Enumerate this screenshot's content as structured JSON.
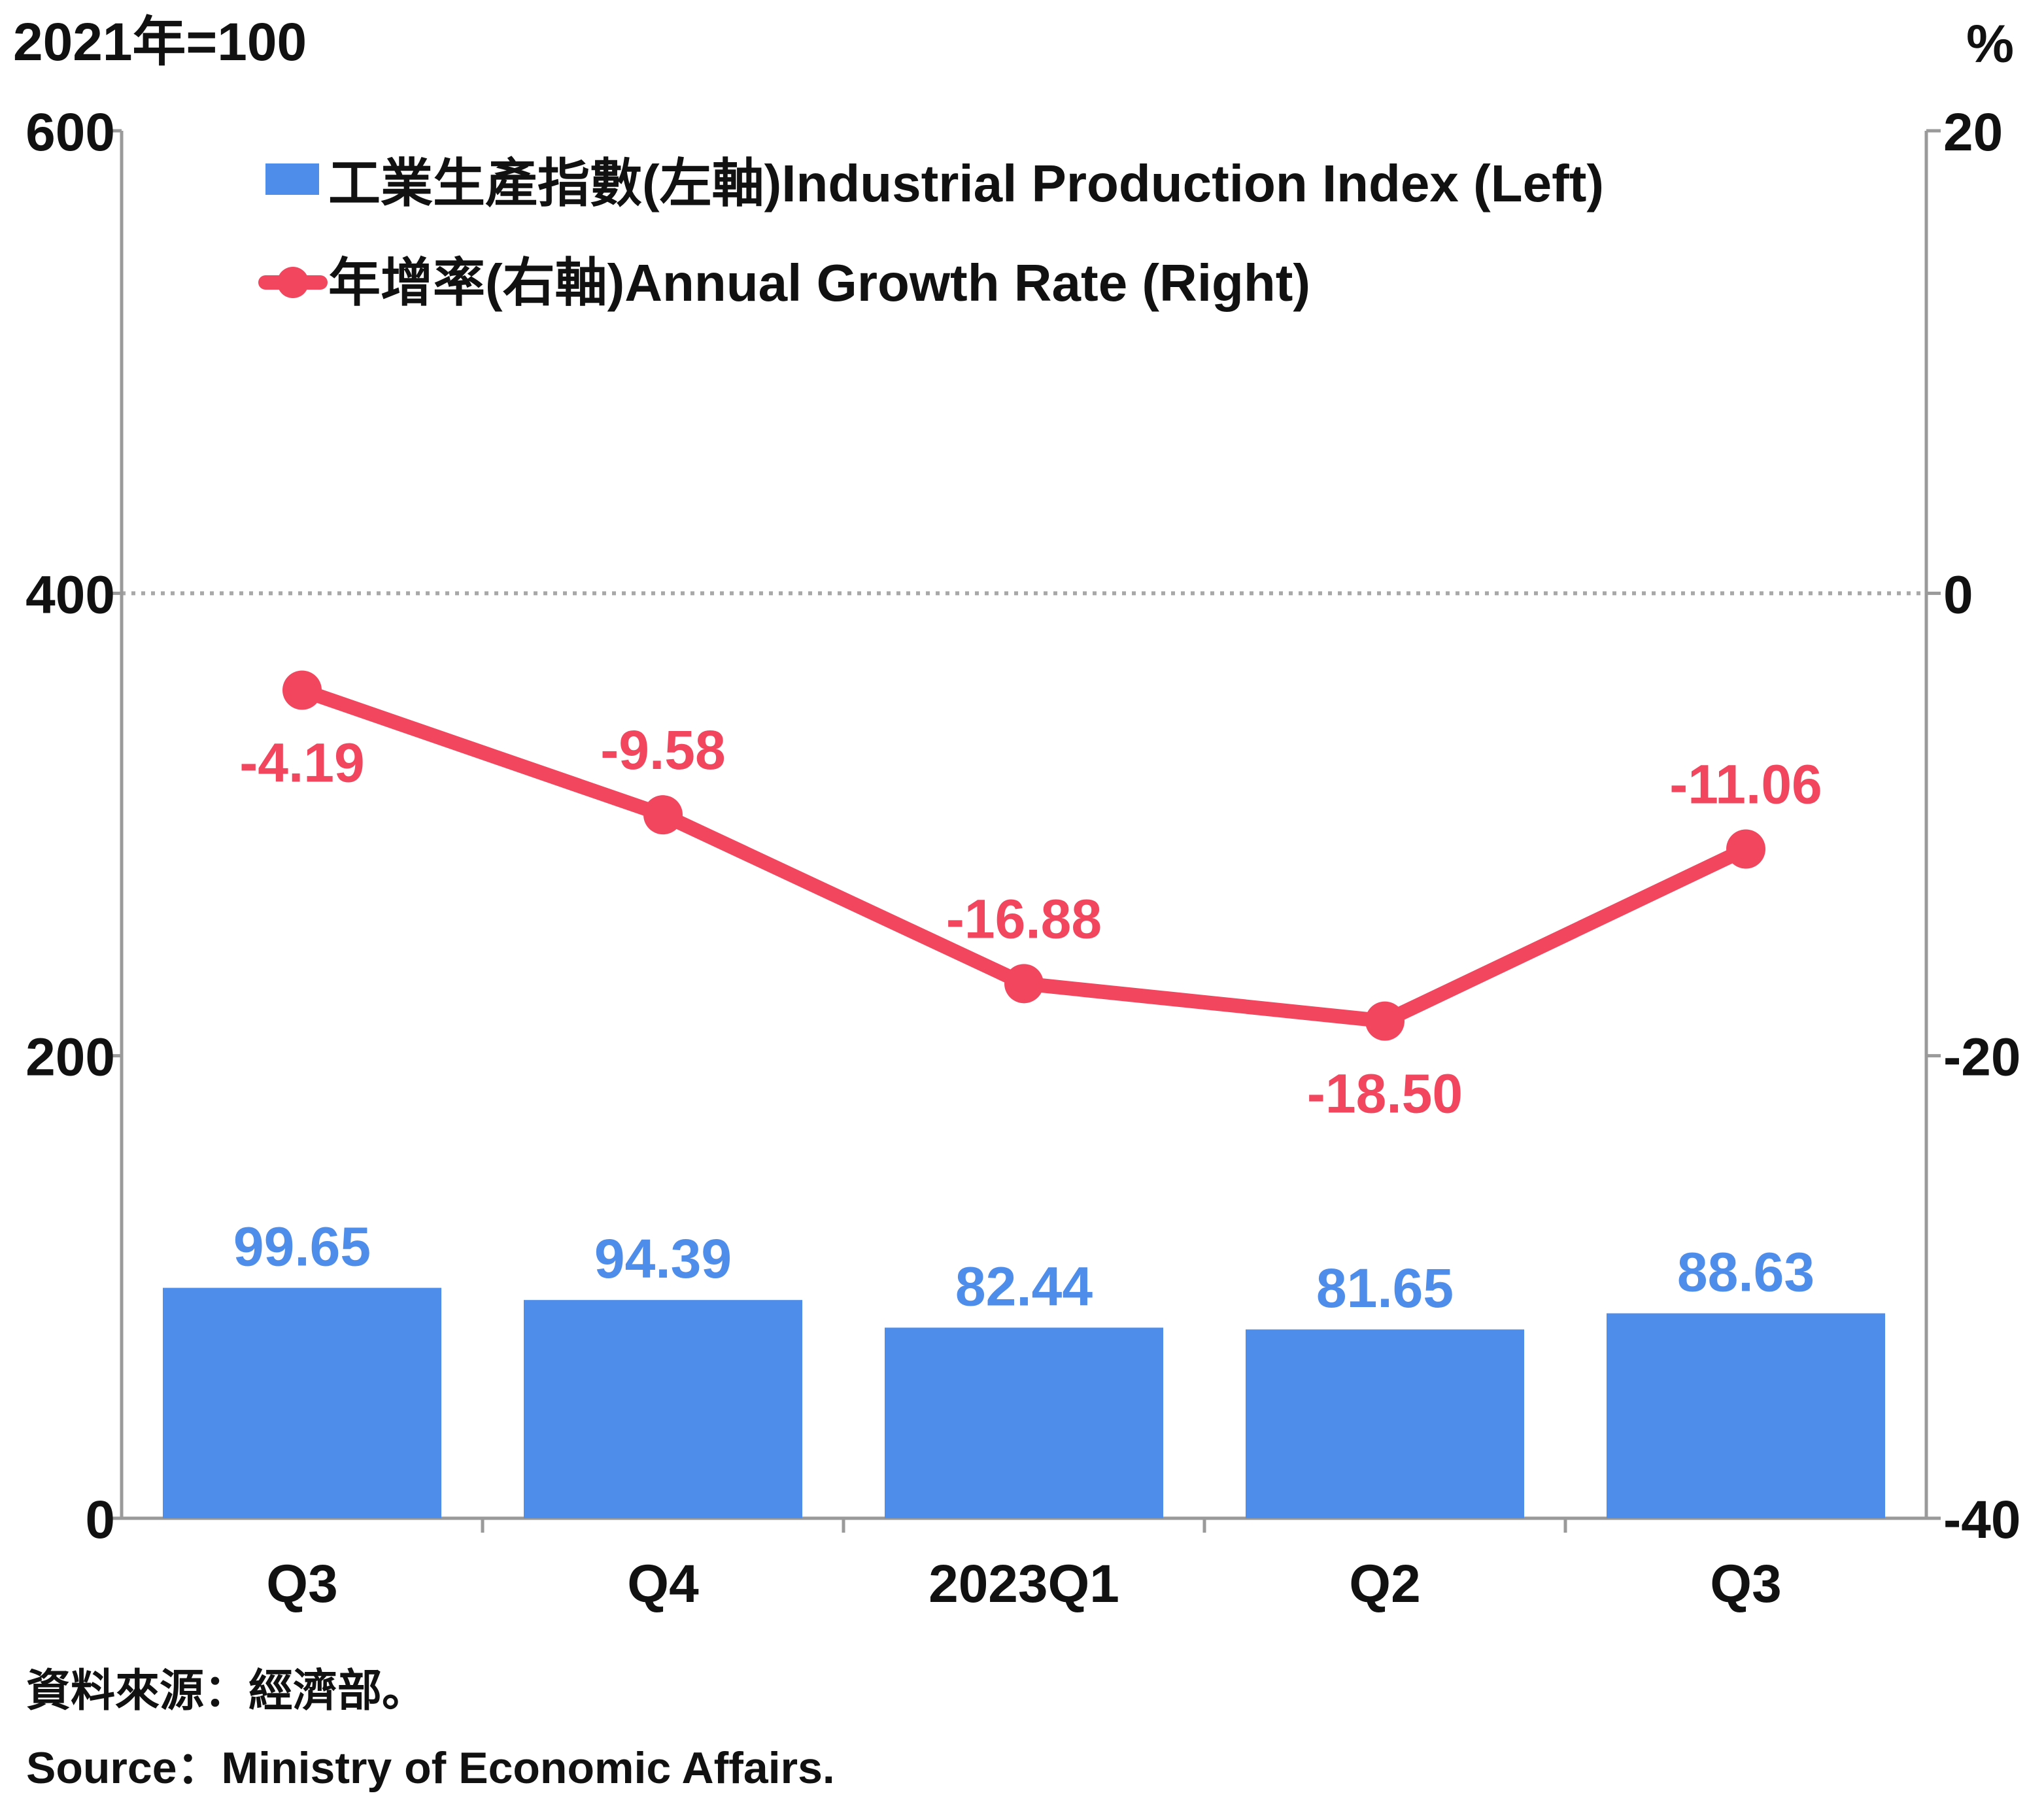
{
  "header": {
    "left_unit": "2021年=100",
    "right_unit": "%"
  },
  "legend": {
    "bar_label": "工業生產指數(左軸)Industrial Production Index (Left)",
    "line_label": "年增率(右軸)Annual Growth Rate (Right)"
  },
  "source": {
    "zh": "資料來源：經濟部。",
    "en": "Source：Ministry of Economic Affairs."
  },
  "colors": {
    "bar": "#4f8dea",
    "line": "#f2465f",
    "axis": "#9a9a9a",
    "text": "#111111"
  },
  "chart_data": {
    "type": "bar",
    "categories": [
      "Q3",
      "Q4",
      "2023Q1",
      "Q2",
      "Q3"
    ],
    "left_axis": {
      "ylim": [
        0,
        600
      ],
      "ticks": [
        "0",
        "200",
        "400",
        "600"
      ]
    },
    "right_axis": {
      "ylim": [
        -40,
        20
      ],
      "ticks": [
        "-40",
        "-20",
        "0",
        "20"
      ]
    },
    "series": [
      {
        "name": "工業生產指數(左軸)Industrial Production Index (Left)",
        "type": "bar",
        "axis": "left",
        "values": [
          99.65,
          94.39,
          82.44,
          81.65,
          88.63
        ],
        "labels": [
          "99.65",
          "94.39",
          "82.44",
          "81.65",
          "88.63"
        ]
      },
      {
        "name": "年增率(右軸)Annual Growth Rate (Right)",
        "type": "line",
        "axis": "right",
        "values": [
          -4.19,
          -9.58,
          -16.88,
          -18.5,
          -11.06
        ],
        "labels": [
          "-4.19",
          "-9.58",
          "-16.88",
          "-18.50",
          "-11.06"
        ]
      }
    ],
    "reference_line": {
      "axis": "right",
      "value": 0,
      "style": "dotted"
    },
    "grid": false,
    "legend_position": "top-left"
  }
}
